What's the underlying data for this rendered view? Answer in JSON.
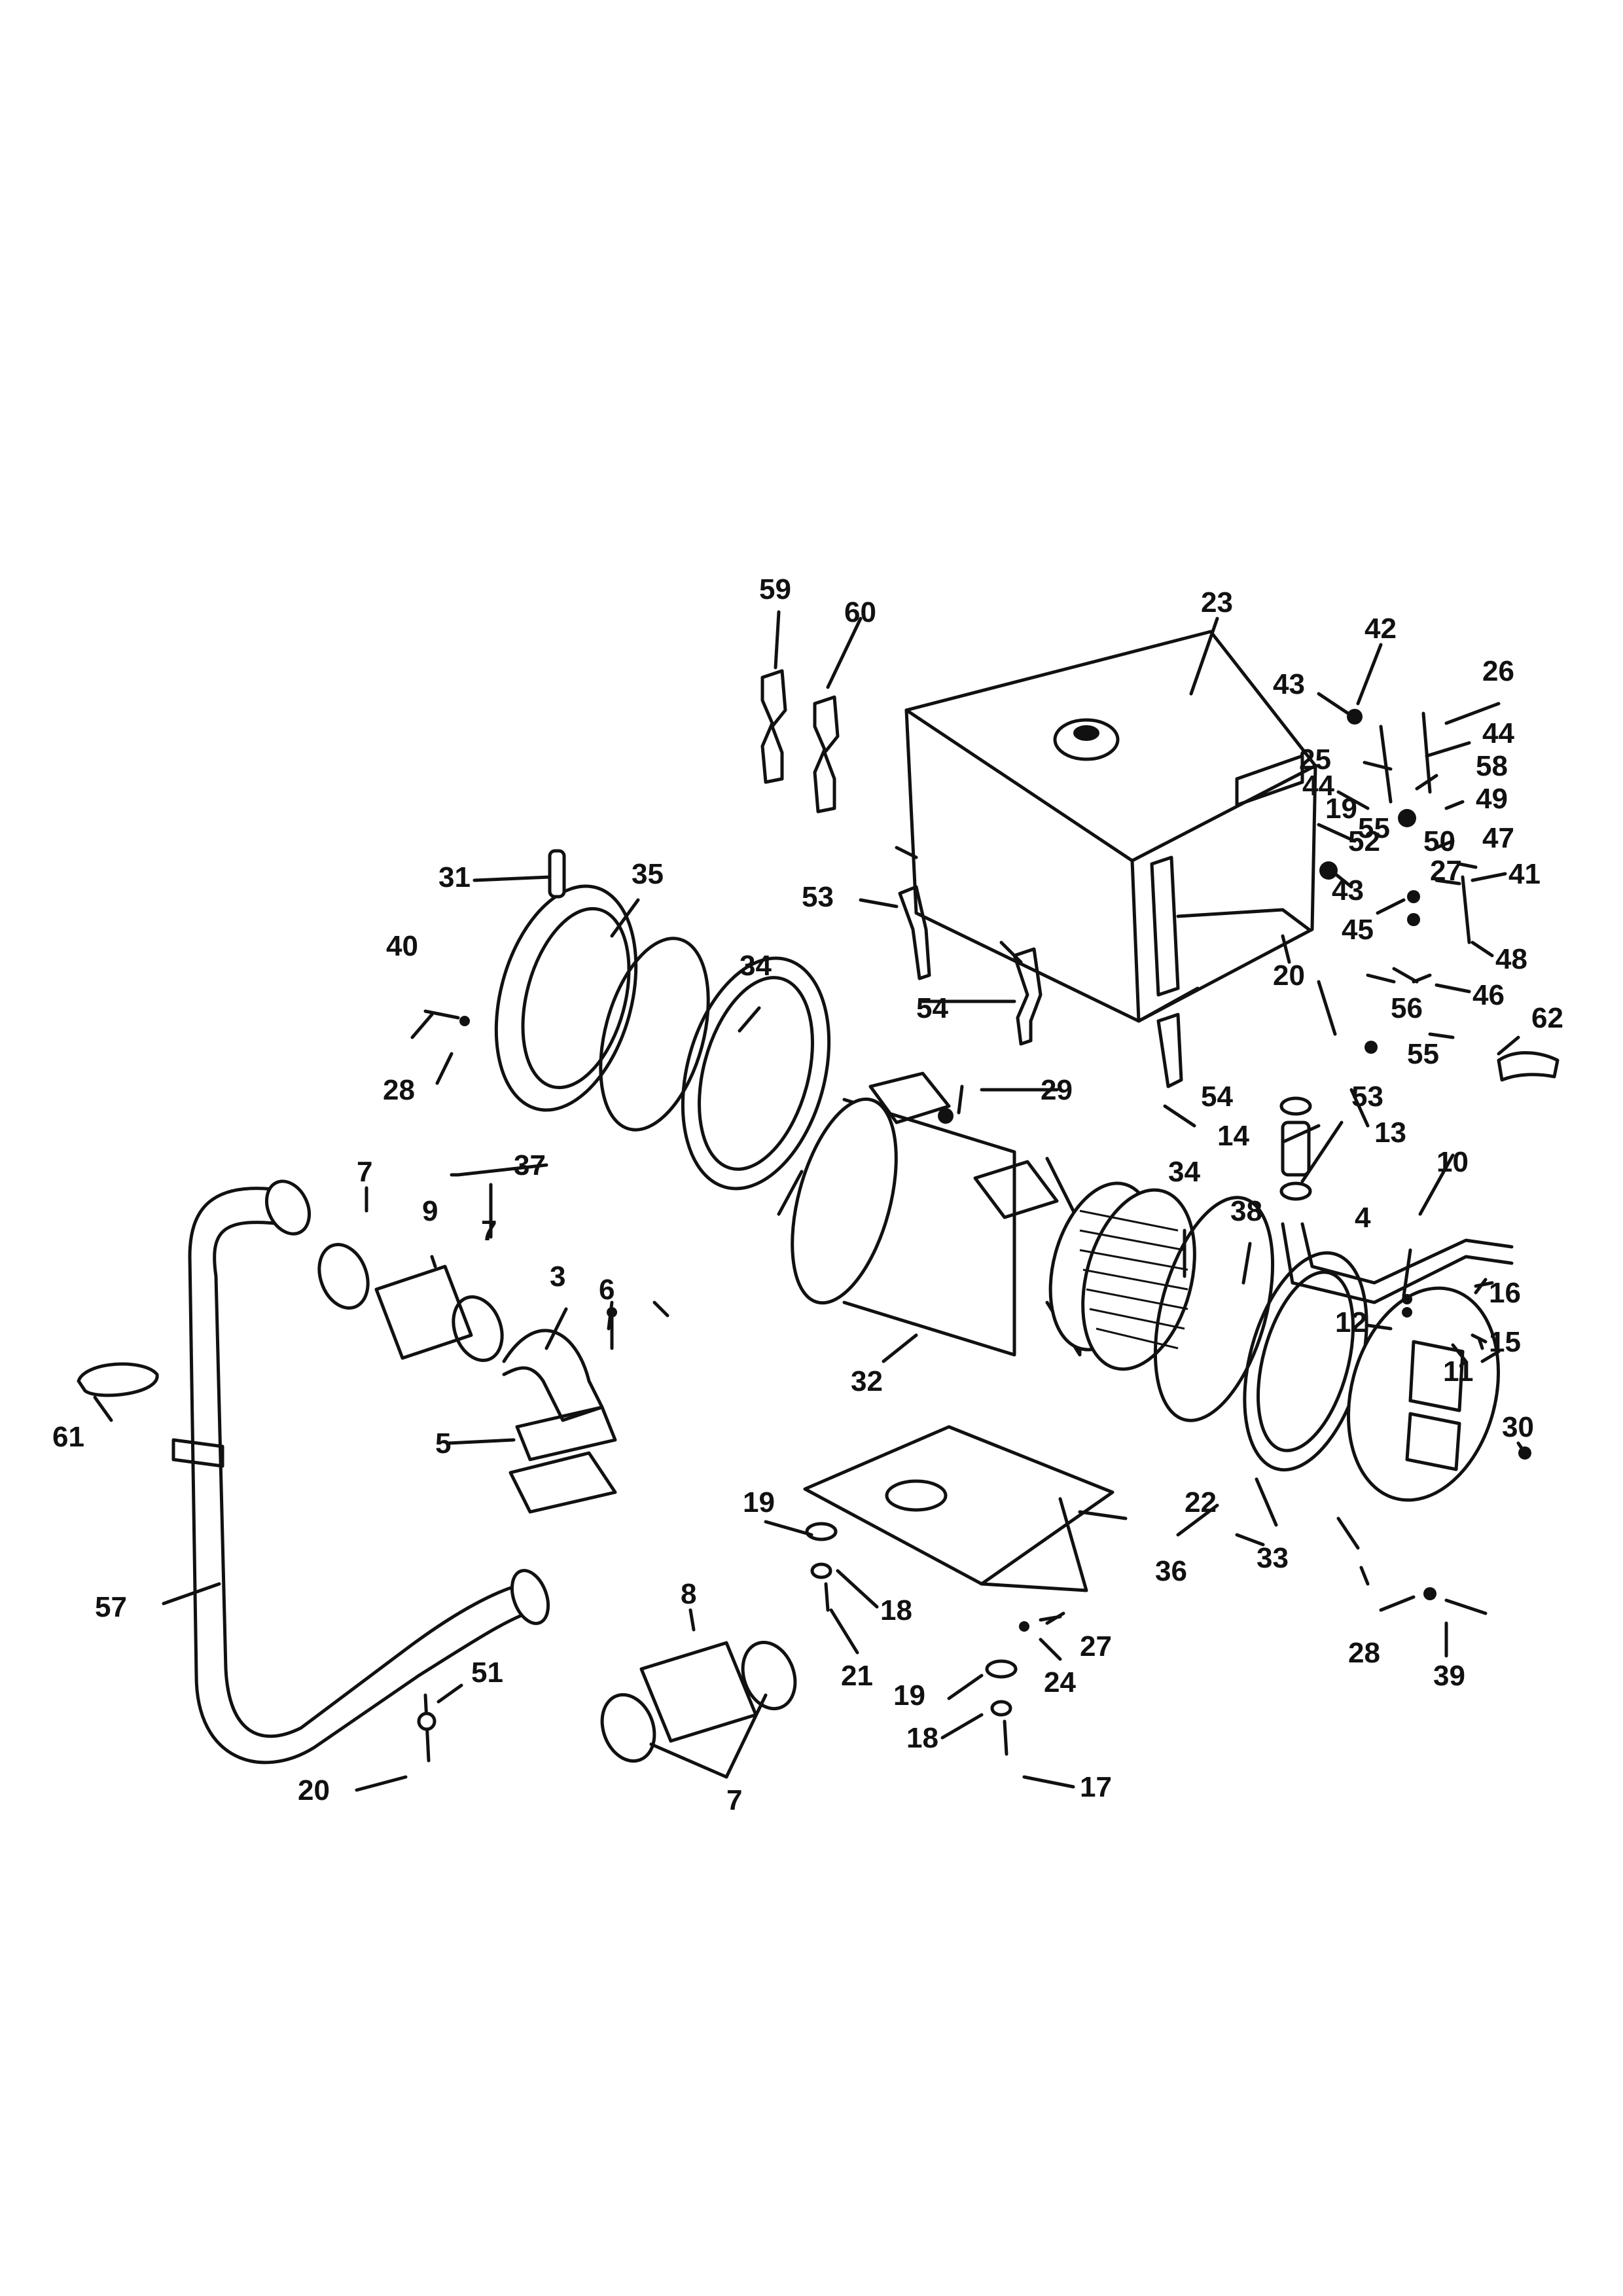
{
  "diagram": {
    "callouts": [
      "59",
      "60",
      "23",
      "42",
      "43",
      "26",
      "44",
      "25",
      "44",
      "58",
      "19",
      "49",
      "52",
      "50",
      "47",
      "55",
      "27",
      "41",
      "43",
      "31",
      "35",
      "53",
      "20",
      "45",
      "48",
      "46",
      "62",
      "40",
      "34",
      "56",
      "54",
      "55",
      "28",
      "29",
      "54",
      "53",
      "37",
      "13",
      "14",
      "13",
      "7",
      "9",
      "7",
      "10",
      "34",
      "38",
      "4",
      "3",
      "6",
      "16",
      "12",
      "15",
      "11",
      "32",
      "61",
      "5",
      "30",
      "19",
      "22",
      "36",
      "33",
      "57",
      "18",
      "27",
      "28",
      "8",
      "21",
      "24",
      "39",
      "51",
      "19",
      "18",
      "20",
      "7",
      "17"
    ]
  }
}
